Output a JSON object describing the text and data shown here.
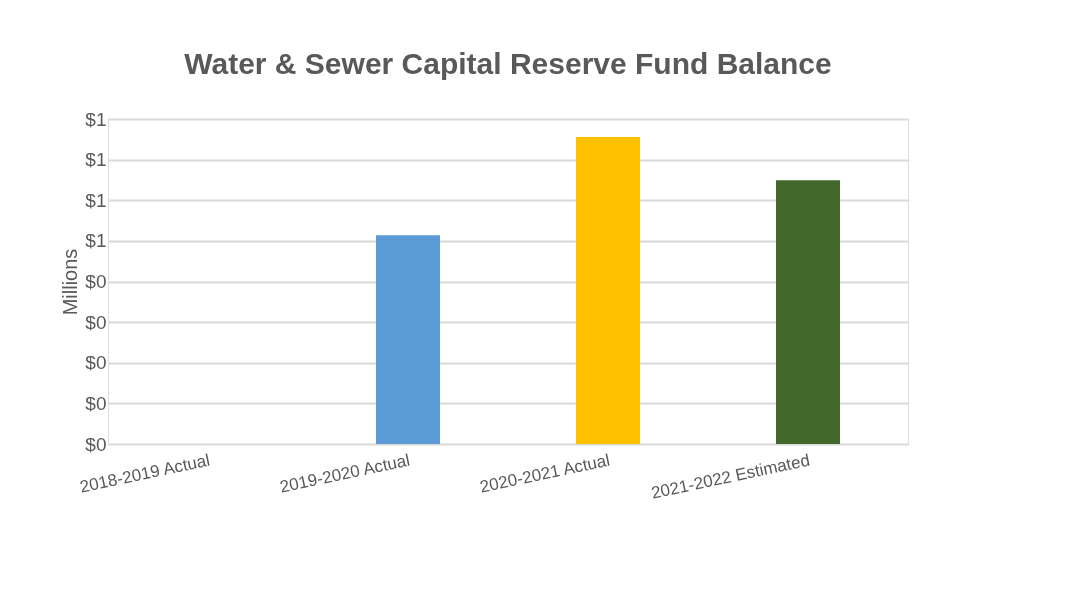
{
  "chart_data": {
    "type": "bar",
    "title": "Water & Sewer Capital Reserve Fund Balance",
    "ylabel": "Millions",
    "categories": [
      "2018-2019 Actual",
      "2019-2020 Actual",
      "2020-2021 Actual",
      "2021-2022 Estimated"
    ],
    "values": [
      0,
      0.514,
      0.756,
      0.649
    ],
    "colors": [
      "#5b9bd5",
      "#5b9bd5",
      "#ffc000",
      "#43682b"
    ],
    "ylim": [
      0,
      0.8
    ],
    "yticks": [
      {
        "value": 0,
        "label": "$0"
      },
      {
        "value": 0.1,
        "label": "$0"
      },
      {
        "value": 0.2,
        "label": "$0"
      },
      {
        "value": 0.3,
        "label": "$0"
      },
      {
        "value": 0.4,
        "label": "$0"
      },
      {
        "value": 0.5,
        "label": "$1"
      },
      {
        "value": 0.6,
        "label": "$1"
      },
      {
        "value": 0.7,
        "label": "$1"
      },
      {
        "value": 0.8,
        "label": "$1"
      }
    ],
    "grid": "y",
    "legend": false
  }
}
